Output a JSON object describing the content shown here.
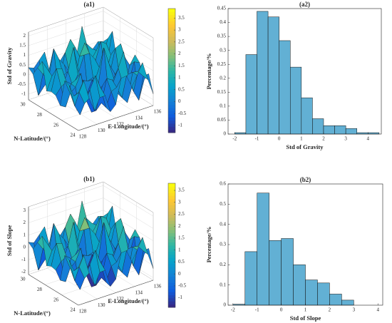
{
  "chart_data": [
    {
      "type": "surface",
      "title": "(a1)",
      "xlabel": "E-Longitude/(°)",
      "ylabel": "N-Latitude/(°)",
      "zlabel": "Std of Gravity",
      "xlim": [
        128,
        136
      ],
      "ylim": [
        24,
        30
      ],
      "zlim": [
        -1.3,
        2.2
      ],
      "xticks": [
        128,
        130,
        132,
        134,
        136
      ],
      "yticks": [
        24,
        26,
        28,
        30
      ],
      "zticks": [
        -1,
        -0.5,
        0,
        0.5,
        1,
        1.5,
        2
      ],
      "colorbar_lim": [
        -1.3,
        3.9
      ],
      "colorbar_ticks": [
        -1,
        -0.5,
        0,
        0.5,
        1,
        1.5,
        2,
        2.5,
        3,
        3.5
      ]
    },
    {
      "type": "histogram",
      "title": "(a2)",
      "xlabel": "Std of Gravity",
      "ylabel": "Percentage/%",
      "color": "#62b0d4",
      "bins": [
        -2,
        -1.5,
        -1,
        -0.5,
        0,
        0.5,
        1,
        1.5,
        2,
        2.5,
        3,
        3.5,
        4,
        4.5
      ],
      "values": [
        0.005,
        0.285,
        0.44,
        0.42,
        0.335,
        0.24,
        0.13,
        0.055,
        0.03,
        0.03,
        0.02,
        0.005,
        0.005
      ],
      "xlim": [
        -2.3,
        4.6
      ],
      "xticks": [
        -2,
        -1,
        0,
        1,
        2,
        3,
        4
      ],
      "ylim": [
        0,
        0.45
      ],
      "yticks": [
        0,
        0.05,
        0.1,
        0.15,
        0.2,
        0.25,
        0.3,
        0.35,
        0.4,
        0.45
      ]
    },
    {
      "type": "surface",
      "title": "(b1)",
      "xlabel": "E-Longitude/(°)",
      "ylabel": "N-Latitude/(°)",
      "zlabel": "Std of Slope",
      "xlim": [
        128,
        136
      ],
      "ylim": [
        24,
        30
      ],
      "zlim": [
        -2.2,
        3.3
      ],
      "xticks": [
        128,
        130,
        132,
        134,
        136
      ],
      "yticks": [
        24,
        26,
        28,
        30
      ],
      "zticks": [
        -2,
        -1,
        0,
        1,
        2,
        3
      ],
      "colorbar_lim": [
        -1.4,
        3.8
      ],
      "colorbar_ticks": [
        -1,
        -0.5,
        0,
        0.5,
        1,
        1.5,
        2,
        2.5,
        3,
        3.5
      ]
    },
    {
      "type": "histogram",
      "title": "(b2)",
      "xlabel": "Std of Slope",
      "ylabel": "Percentage/%",
      "color": "#62b0d4",
      "bins": [
        -2,
        -1.5,
        -1,
        -0.5,
        0,
        0.5,
        1,
        1.5,
        2,
        2.5,
        3
      ],
      "values": [
        0.005,
        0.265,
        0.555,
        0.32,
        0.33,
        0.2,
        0.125,
        0.11,
        0.055,
        0.025
      ],
      "xlim": [
        -2.2,
        4.2
      ],
      "xticks": [
        -2,
        -1,
        0,
        1,
        2,
        3,
        4
      ],
      "ylim": [
        0,
        0.6
      ],
      "yticks": [
        0,
        0.1,
        0.2,
        0.3,
        0.4,
        0.5,
        0.6
      ]
    }
  ]
}
